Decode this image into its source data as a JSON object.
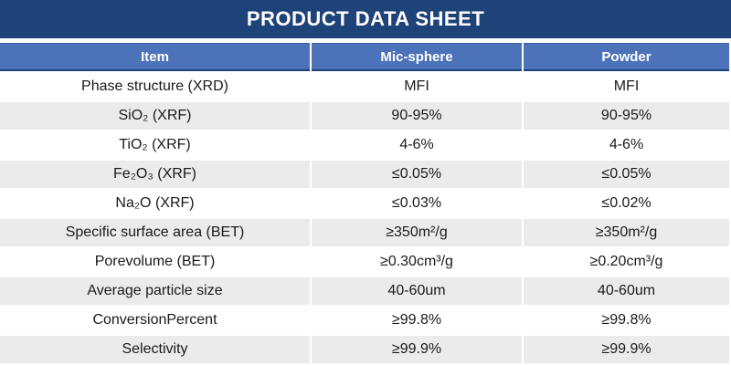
{
  "title": "PRODUCT DATA SHEET",
  "colors": {
    "title_bar_bg": "#1E4379",
    "header_row_bg": "#4C73B9",
    "header_border": "#1E4379",
    "stripe_bg": "#EBEBEB",
    "header_text": "#FFFFFF",
    "body_text": "#1A1A1A"
  },
  "table": {
    "columns": [
      "Item",
      "Mic-sphere",
      "Powder"
    ],
    "rows": [
      [
        "Phase structure (XRD)",
        "MFI",
        "MFI"
      ],
      [
        "SiO₂ (XRF)",
        "90-95%",
        "90-95%"
      ],
      [
        "TiO₂ (XRF)",
        "4-6%",
        "4-6%"
      ],
      [
        "Fe₂O₃ (XRF)",
        "≤0.05%",
        "≤0.05%"
      ],
      [
        "Na₂O (XRF)",
        "≤0.03%",
        "≤0.02%"
      ],
      [
        "Specific surface area (BET)",
        "≥350m²/g",
        "≥350m²/g"
      ],
      [
        "Porevolume (BET)",
        "≥0.30cm³/g",
        "≥0.20cm³/g"
      ],
      [
        "Average particle size",
        "40-60um",
        "40-60um"
      ],
      [
        "ConversionPercent",
        "≥99.8%",
        "≥99.8%"
      ],
      [
        "Selectivity",
        "≥99.9%",
        "≥99.9%"
      ]
    ]
  }
}
